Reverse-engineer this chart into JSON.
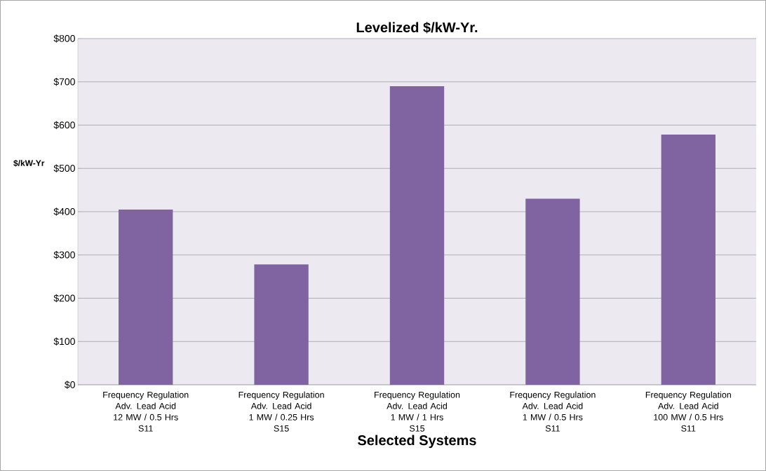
{
  "chart_data": {
    "type": "bar",
    "title": "Levelized $/kW-Yr.",
    "xlabel": "Selected Systems",
    "ylabel": "$/kW-Yr",
    "categories": [
      "Frequency Regulation\nAdv. Lead Acid\n12 MW /  0.5 Hrs\nS11",
      "Frequency Regulation\nAdv. Lead Acid\n1 MW  / 0.25 Hrs\nS15",
      "Frequency Regulation\nAdv. Lead Acid\n1 MW /  1 Hrs\nS15",
      "Frequency Regulation\nAdv. Lead Acid\n1 MW /  0.5 Hrs\nS11",
      "Frequency Regulation\nAdv. Lead Acid\n100 MW  / 0.5 Hrs\nS11"
    ],
    "values": [
      405,
      278,
      690,
      430,
      578
    ],
    "color": "#8064a2",
    "ylim": [
      0,
      800
    ],
    "yticks": [
      {
        "value": 0,
        "label": "$0"
      },
      {
        "value": 100,
        "label": "$100"
      },
      {
        "value": 200,
        "label": "$200"
      },
      {
        "value": 300,
        "label": "$300"
      },
      {
        "value": 400,
        "label": "$400"
      },
      {
        "value": 500,
        "label": "$500"
      },
      {
        "value": 600,
        "label": "$600"
      },
      {
        "value": 700,
        "label": "$700"
      },
      {
        "value": 800,
        "label": "$800"
      }
    ],
    "grid": "y"
  }
}
